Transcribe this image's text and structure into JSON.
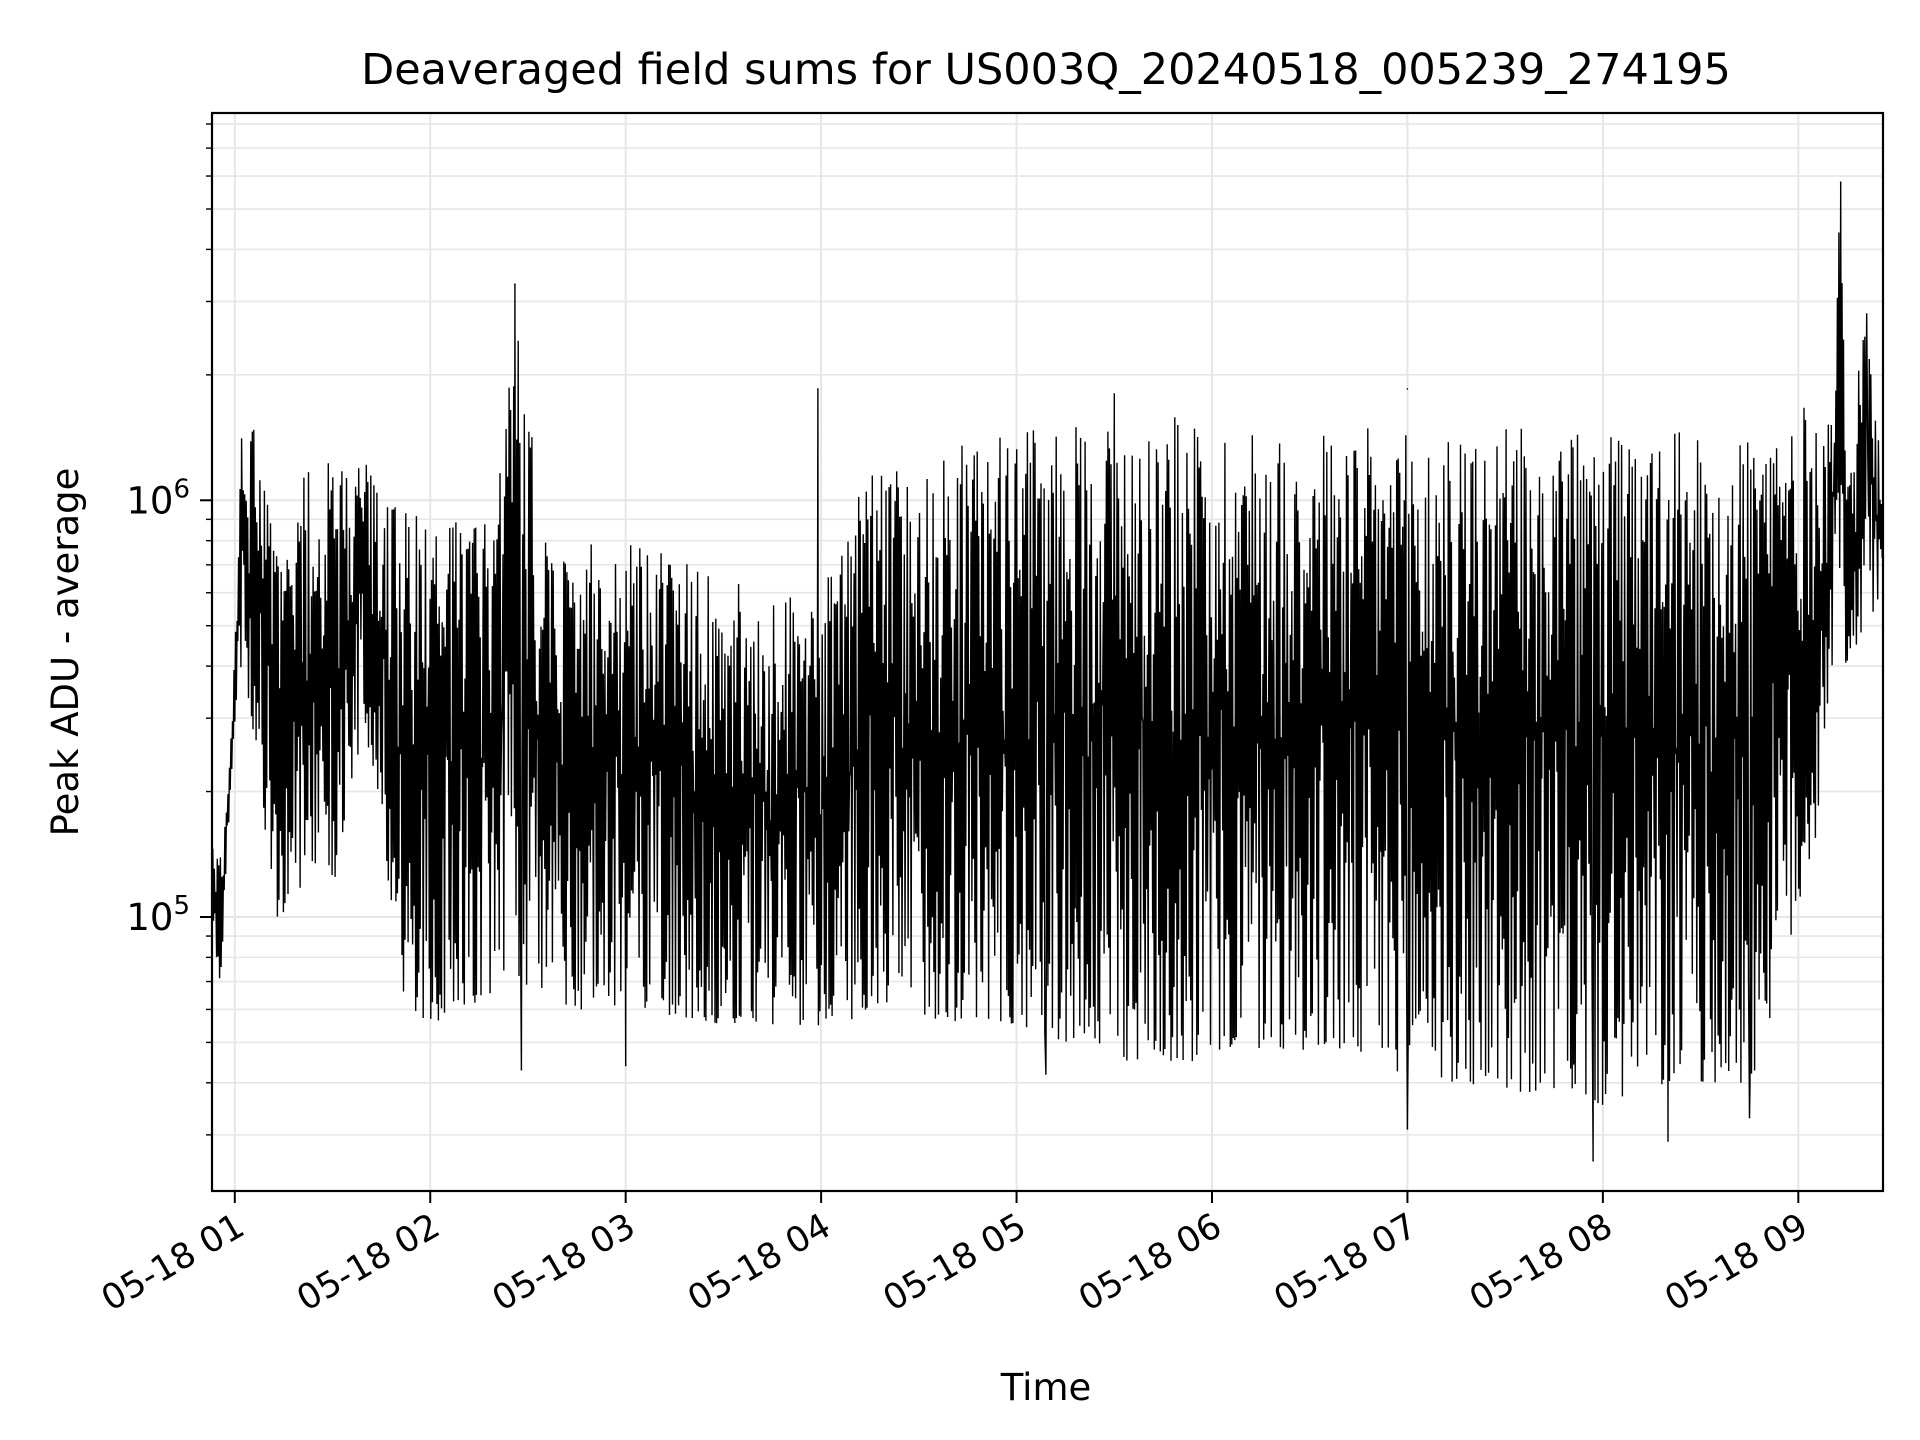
{
  "chart_data": {
    "type": "line",
    "title": "Deaveraged field sums for US003Q_20240518_005239_274195",
    "xlabel": "Time",
    "ylabel": "Peak ADU - average",
    "x_range": [
      "2024-05-18T00:53:00",
      "2024-05-18T09:26:00"
    ],
    "ylim": [
      22000,
      8500000
    ],
    "yscale": "log",
    "grid": true,
    "line_color": "#000000",
    "x_ticks": [
      {
        "value": "2024-05-18T01:00:00",
        "label": "05-18 01"
      },
      {
        "value": "2024-05-18T02:00:00",
        "label": "05-18 02"
      },
      {
        "value": "2024-05-18T03:00:00",
        "label": "05-18 03"
      },
      {
        "value": "2024-05-18T04:00:00",
        "label": "05-18 04"
      },
      {
        "value": "2024-05-18T05:00:00",
        "label": "05-18 05"
      },
      {
        "value": "2024-05-18T06:00:00",
        "label": "05-18 06"
      },
      {
        "value": "2024-05-18T07:00:00",
        "label": "05-18 07"
      },
      {
        "value": "2024-05-18T08:00:00",
        "label": "05-18 08"
      },
      {
        "value": "2024-05-18T09:00:00",
        "label": "05-18 09"
      }
    ],
    "y_ticks": [
      {
        "value": 100000,
        "base": "10",
        "exp": "5"
      },
      {
        "value": 1000000,
        "base": "10",
        "exp": "6"
      }
    ],
    "series": [
      {
        "x": [
          "2024-05-18T00:53:00",
          "2024-05-18T00:55:30",
          "2024-05-18T00:57:30",
          "2024-05-18T00:59:30",
          "2024-05-18T01:02:00",
          "2024-05-18T01:05:00",
          "2024-05-18T01:08:00",
          "2024-05-18T01:11:00",
          "2024-05-18T01:14:00",
          "2024-05-18T01:18:00",
          "2024-05-18T01:22:00",
          "2024-05-18T01:26:00",
          "2024-05-18T01:30:00",
          "2024-05-18T01:35:00",
          "2024-05-18T01:40:00",
          "2024-05-18T01:45:00",
          "2024-05-18T01:50:00",
          "2024-05-18T01:55:00",
          "2024-05-18T02:00:00",
          "2024-05-18T02:10:00",
          "2024-05-18T02:20:00",
          "2024-05-18T02:26:00",
          "2024-05-18T02:35:00",
          "2024-05-18T02:45:00",
          "2024-05-18T03:00:00",
          "2024-05-18T03:15:00",
          "2024-05-18T03:30:00",
          "2024-05-18T03:45:00",
          "2024-05-18T04:00:00",
          "2024-05-18T04:15:00",
          "2024-05-18T04:30:00",
          "2024-05-18T04:45:00",
          "2024-05-18T05:00:00",
          "2024-05-18T05:15:00",
          "2024-05-18T05:30:00",
          "2024-05-18T05:45:00",
          "2024-05-18T06:00:00",
          "2024-05-18T06:15:00",
          "2024-05-18T06:30:00",
          "2024-05-18T06:45:00",
          "2024-05-18T07:00:00",
          "2024-05-18T07:15:00",
          "2024-05-18T07:30:00",
          "2024-05-18T07:45:00",
          "2024-05-18T08:00:00",
          "2024-05-18T08:15:00",
          "2024-05-18T08:30:00",
          "2024-05-18T08:45:00",
          "2024-05-18T09:00:00",
          "2024-05-18T09:05:00",
          "2024-05-18T09:10:00",
          "2024-05-18T09:13:00",
          "2024-05-18T09:16:00",
          "2024-05-18T09:20:00",
          "2024-05-18T09:26:00"
        ],
        "lower": [
          95000,
          65000,
          130000,
          260000,
          380000,
          300000,
          220000,
          110000,
          90000,
          130000,
          100000,
          150000,
          110000,
          200000,
          280000,
          180000,
          70000,
          60000,
          55000,
          60000,
          65000,
          70000,
          65000,
          60000,
          60000,
          58000,
          55000,
          55000,
          55000,
          58000,
          58000,
          55000,
          55000,
          50000,
          45000,
          45000,
          45000,
          48000,
          48000,
          45000,
          42000,
          40000,
          38000,
          38000,
          35000,
          38000,
          40000,
          38000,
          100000,
          140000,
          400000,
          380000,
          420000,
          460000,
          620000
        ],
        "upper": [
          150000,
          140000,
          200000,
          350000,
          1450000,
          1600000,
          1500000,
          900000,
          700000,
          800000,
          1300000,
          1200000,
          1350000,
          1100000,
          1350000,
          1100000,
          1000000,
          1000000,
          900000,
          900000,
          900000,
          3300000,
          800000,
          800000,
          800000,
          750000,
          650000,
          600000,
          600000,
          1200000,
          1200000,
          1400000,
          1450000,
          1550000,
          1600000,
          1600000,
          1550000,
          1500000,
          1500000,
          1500000,
          1450000,
          1450000,
          1500000,
          1500000,
          1450000,
          1400000,
          1500000,
          1550000,
          1700000,
          1650000,
          1600000,
          5800000,
          1200000,
          2800000,
          1250000
        ],
        "peaks": [
          {
            "x": "2024-05-18T02:26:00",
            "value": 3300000
          },
          {
            "x": "2024-05-18T03:59:00",
            "value": 1850000
          },
          {
            "x": "2024-05-18T05:30:00",
            "value": 1800000
          },
          {
            "x": "2024-05-18T07:00:00",
            "value": 1850000
          },
          {
            "x": "2024-05-18T09:13:00",
            "value": 5800000
          },
          {
            "x": "2024-05-18T09:21:00",
            "value": 2800000
          }
        ],
        "troughs": [
          {
            "x": "2024-05-18T02:28:00",
            "value": 43000
          },
          {
            "x": "2024-05-18T03:00:00",
            "value": 44000
          },
          {
            "x": "2024-05-18T05:09:00",
            "value": 42000
          },
          {
            "x": "2024-05-18T07:00:00",
            "value": 31000
          },
          {
            "x": "2024-05-18T07:57:00",
            "value": 26000
          },
          {
            "x": "2024-05-18T08:20:00",
            "value": 29000
          },
          {
            "x": "2024-05-18T08:45:00",
            "value": 33000
          }
        ]
      }
    ]
  }
}
